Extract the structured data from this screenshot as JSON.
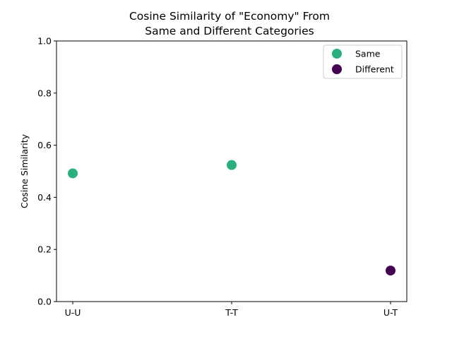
{
  "chart_data": {
    "type": "scatter",
    "title_lines": [
      "Cosine Similarity of \"Economy\" From",
      "Same and Different Categories"
    ],
    "xlabel": "",
    "ylabel": "Cosine Similarity",
    "categories": [
      "U-U",
      "T-T",
      "U-T"
    ],
    "ylim": [
      0.0,
      1.0
    ],
    "yticks": [
      "0.0",
      "0.2",
      "0.4",
      "0.6",
      "0.8",
      "1.0"
    ],
    "grid": false,
    "legend_placement": "upper-right",
    "series": [
      {
        "name": "Same",
        "color": "#2ab07f",
        "points": [
          {
            "x": "U-U",
            "y": 0.492
          },
          {
            "x": "T-T",
            "y": 0.524
          }
        ]
      },
      {
        "name": "Different",
        "color": "#440154",
        "points": [
          {
            "x": "U-T",
            "y": 0.119
          }
        ]
      }
    ]
  }
}
